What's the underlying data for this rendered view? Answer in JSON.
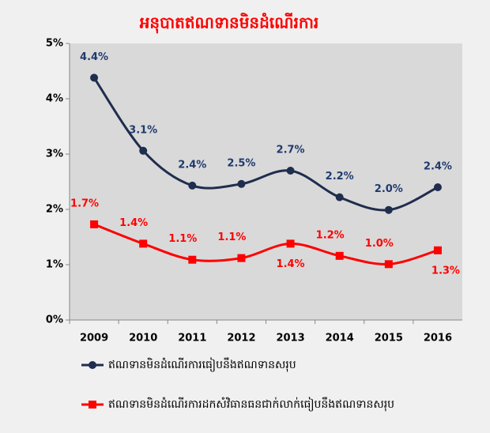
{
  "chart_data": {
    "type": "line",
    "title": "អនុបាតឥណទានមិនដំណើរការ",
    "categories": [
      "2009",
      "2010",
      "2011",
      "2012",
      "2013",
      "2014",
      "2015",
      "2016"
    ],
    "series": [
      {
        "name": "ឥណទានមិនដំណើរការធៀបនឹងឥណទានសរុប",
        "color": "#1f2d4e",
        "marker": "circle",
        "values": [
          4.38,
          3.06,
          2.43,
          2.46,
          2.7,
          2.22,
          1.99,
          2.4
        ],
        "value_labels": [
          "4.4%",
          "3.1%",
          "2.4%",
          "2.5%",
          "2.7%",
          "2.2%",
          "2.0%",
          "2.4%"
        ]
      },
      {
        "name": "ឥណទានមិនដំណើរការដកសំវិធានធនជាក់លាក់ធៀបនឹងឥណទានសរុប",
        "color": "#ff0000",
        "marker": "square",
        "values": [
          1.73,
          1.38,
          1.09,
          1.12,
          1.38,
          1.16,
          1.01,
          1.26
        ],
        "value_labels": [
          "1.7%",
          "1.4%",
          "1.1%",
          "1.1%",
          "1.4%",
          "1.2%",
          "1.0%",
          "1.3%"
        ]
      }
    ],
    "ylim": [
      0,
      5
    ],
    "yticks": [
      {
        "value": 0,
        "label": "0%"
      },
      {
        "value": 1,
        "label": "1%"
      },
      {
        "value": 2,
        "label": "2%"
      },
      {
        "value": 3,
        "label": "3%"
      },
      {
        "value": 4,
        "label": "4%"
      },
      {
        "value": 5,
        "label": "5%"
      }
    ],
    "grid": false
  }
}
